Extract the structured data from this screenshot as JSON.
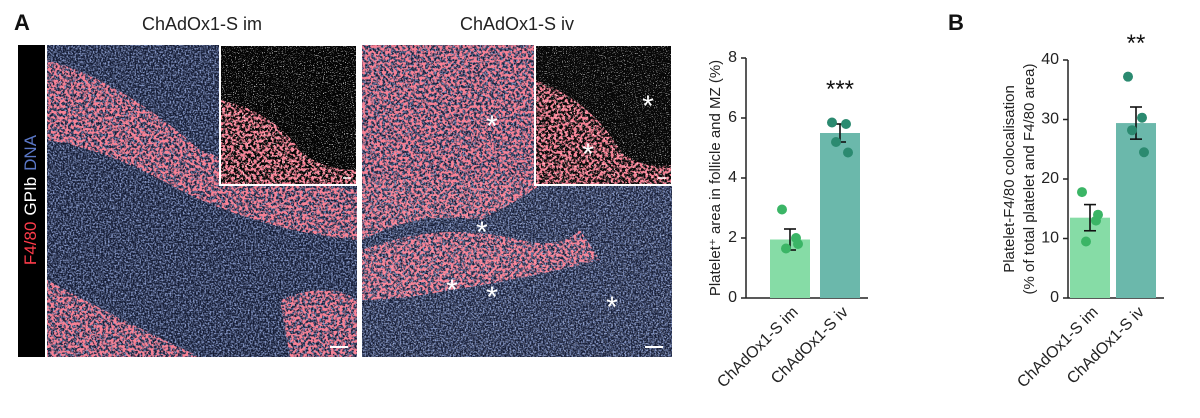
{
  "panel_labels": [
    "A",
    "B"
  ],
  "stain_labels": [
    "F4/80",
    "GPIb",
    "DNA"
  ],
  "images": [
    {
      "title": "ChAdOx1-S im",
      "markers": []
    },
    {
      "title": "ChAdOx1-S iv",
      "markers": [
        "*",
        "*",
        "*",
        "*",
        "*",
        "*",
        "*"
      ]
    }
  ],
  "chart_data": [
    {
      "type": "bar",
      "ylabel": [
        "Platelet⁺ area in follicle and MZ (%)"
      ],
      "categories": [
        "ChAdOx1-S im",
        "ChAdOx1-S iv"
      ],
      "values": [
        1.95,
        5.5
      ],
      "errors": [
        0.35,
        0.3
      ],
      "points": [
        [
          2.95,
          2.0,
          1.65,
          1.8
        ],
        [
          5.85,
          5.8,
          5.2,
          4.85
        ]
      ],
      "colors": [
        "#86dca6",
        "#6bb8ab"
      ],
      "point_colors": [
        "#3bb566",
        "#2b8a70"
      ],
      "significance": "***",
      "ylim": [
        0,
        8
      ],
      "yticks": [
        0,
        2,
        4,
        6,
        8
      ]
    },
    {
      "type": "bar",
      "ylabel": [
        "Platelet-F4/80 colocalisation",
        "(% of total platelet and F4/80 area)"
      ],
      "categories": [
        "ChAdOx1-S im",
        "ChAdOx1-S iv"
      ],
      "values": [
        13.5,
        29.4
      ],
      "errors": [
        2.2,
        2.7
      ],
      "points": [
        [
          17.8,
          13.0,
          9.5,
          14.0
        ],
        [
          37.2,
          30.3,
          28.2,
          24.5
        ]
      ],
      "colors": [
        "#86dca6",
        "#6bb8ab"
      ],
      "point_colors": [
        "#3bb566",
        "#2b8a70"
      ],
      "significance": "**",
      "ylim": [
        0,
        40
      ],
      "yticks": [
        0,
        10,
        20,
        30,
        40
      ]
    }
  ]
}
